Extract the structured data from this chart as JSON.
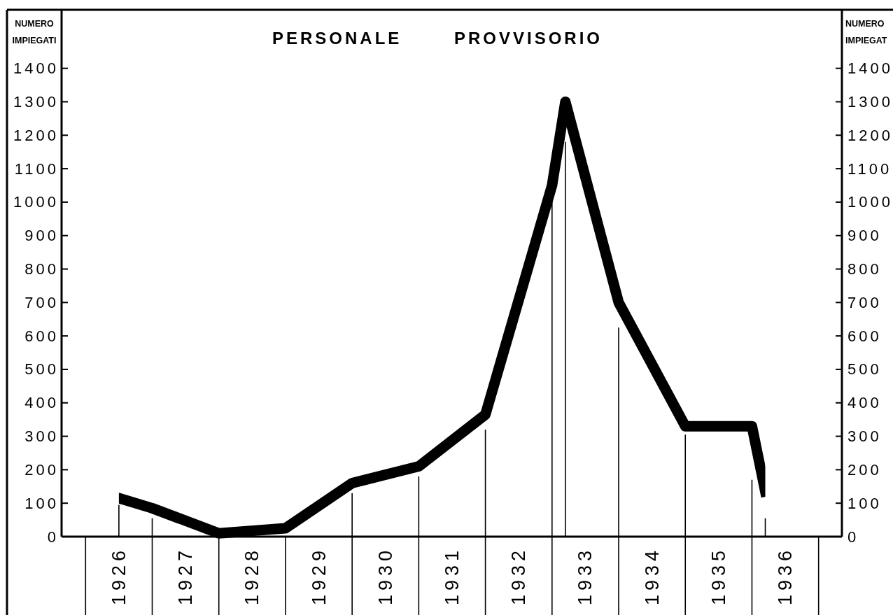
{
  "chart_data": {
    "type": "line",
    "title": "PERSONALE PROVVISORIO",
    "ylabel": "NUMERO IMPIEGATI",
    "y2label": "NUMERO IMPIEGAT",
    "x": [
      1926.5,
      1927,
      1928,
      1929,
      1930,
      1931,
      1932,
      1933,
      1933.2,
      1934,
      1935,
      1936,
      1936.2
    ],
    "xlim": [
      1925.64,
      1937.35
    ],
    "xticks": [
      {
        "value": 1926,
        "label": null
      },
      {
        "value": 1926.5,
        "label": "1926"
      },
      {
        "value": 1927,
        "label": null
      },
      {
        "value": 1927.5,
        "label": "1927"
      },
      {
        "value": 1928,
        "label": null
      },
      {
        "value": 1928.5,
        "label": "1928"
      },
      {
        "value": 1929,
        "label": null
      },
      {
        "value": 1929.5,
        "label": "1929"
      },
      {
        "value": 1930,
        "label": null
      },
      {
        "value": 1930.5,
        "label": "1930"
      },
      {
        "value": 1931,
        "label": null
      },
      {
        "value": 1931.5,
        "label": "1931"
      },
      {
        "value": 1932,
        "label": null
      },
      {
        "value": 1932.5,
        "label": "1932"
      },
      {
        "value": 1933,
        "label": null
      },
      {
        "value": 1933.5,
        "label": "1933"
      },
      {
        "value": 1934,
        "label": null
      },
      {
        "value": 1934.5,
        "label": "1934"
      },
      {
        "value": 1935,
        "label": null
      },
      {
        "value": 1935.5,
        "label": "1935"
      },
      {
        "value": 1936,
        "label": null
      },
      {
        "value": 1936.5,
        "label": "1936"
      },
      {
        "value": 1937,
        "label": null
      }
    ],
    "ylim": [
      0,
      1575
    ],
    "yticks": [
      0,
      100,
      200,
      300,
      400,
      500,
      600,
      700,
      800,
      900,
      1000,
      1100,
      1200,
      1300,
      1400
    ],
    "y2lim": [
      0,
      1575
    ],
    "y2ticks": [
      0,
      100,
      200,
      300,
      400,
      500,
      600,
      700,
      800,
      900,
      1000,
      1100,
      1200,
      1300,
      1400
    ],
    "series": [
      {
        "type": "bar",
        "color": "#000000",
        "values": [
          95,
          55,
          null,
          null,
          130,
          180,
          320,
          1010,
          1180,
          625,
          305,
          170,
          55
        ]
      },
      {
        "color": "#000000",
        "values": [
          115,
          85,
          10,
          25,
          160,
          210,
          365,
          1050,
          1300,
          700,
          330,
          330,
          135
        ]
      }
    ]
  }
}
